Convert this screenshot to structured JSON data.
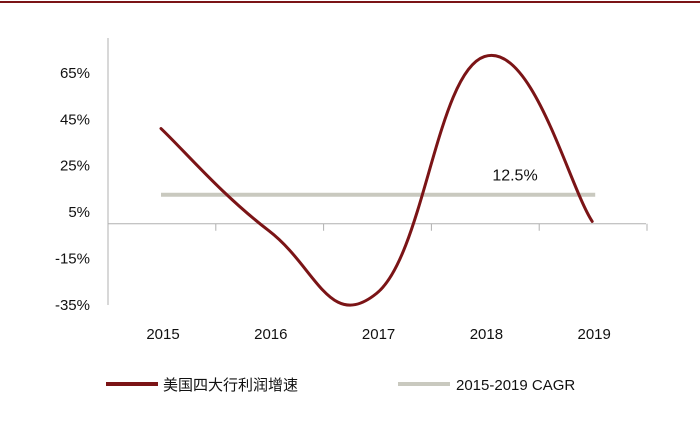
{
  "chart_data": {
    "type": "line",
    "categories": [
      "2015",
      "2016",
      "2017",
      "2018",
      "2019"
    ],
    "series": [
      {
        "name": "美国四大行利润增速",
        "values": [
          41,
          -3,
          -30,
          72,
          1
        ],
        "color": "#7b1416"
      },
      {
        "name": "2015-2019 CAGR",
        "values": [
          12.5,
          12.5,
          12.5,
          12.5,
          12.5
        ],
        "color": "#c9c9bf",
        "label": "12.5%"
      }
    ],
    "yticks": [
      "65%",
      "45%",
      "25%",
      "5%",
      "-15%",
      "-35%"
    ],
    "ylim": [
      -35,
      80
    ],
    "grid": false,
    "legend_position": "bottom",
    "top_rule_color": "#7b1416"
  }
}
